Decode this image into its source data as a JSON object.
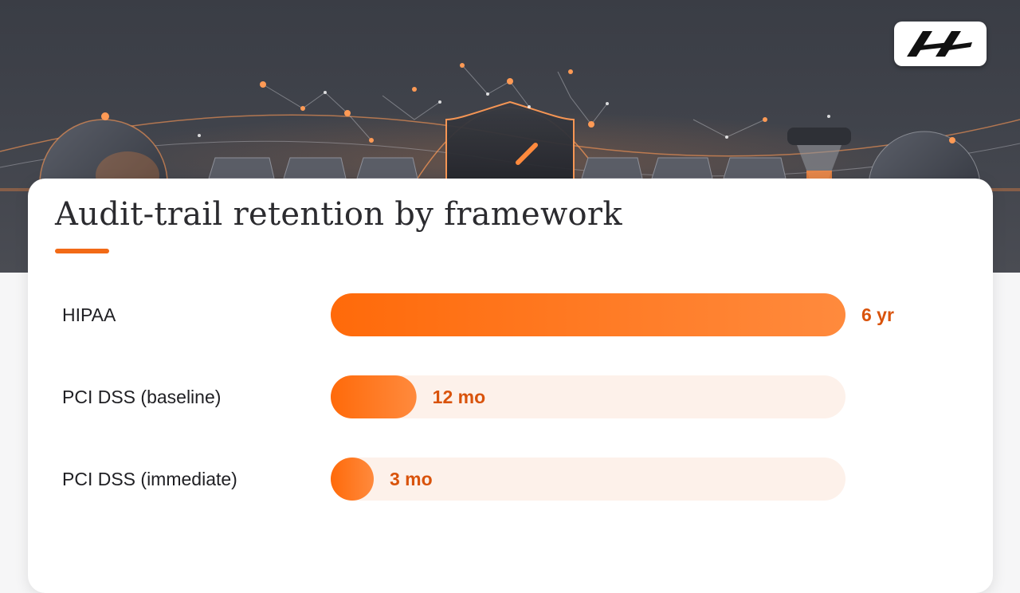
{
  "header": {
    "logo_alt": "brand-logo",
    "illustration": "compliance-shield-network-illustration"
  },
  "colors": {
    "accent": "#f26a16",
    "bar_start": "#ff6a0a",
    "bar_end": "#ff8a3d",
    "track": "#fdf1ea",
    "value_text": "#d9530b"
  },
  "chart_data": {
    "type": "bar",
    "orientation": "horizontal",
    "title": "Audit-trail retention by framework",
    "categories": [
      "HIPAA",
      "PCI DSS (baseline)",
      "PCI DSS (immediate)"
    ],
    "values": [
      72,
      12,
      3
    ],
    "units": "months",
    "value_labels": [
      "6 yr",
      "12 mo",
      "3 mo"
    ],
    "xlim": [
      0,
      72
    ],
    "grid": false,
    "legend": "none"
  }
}
